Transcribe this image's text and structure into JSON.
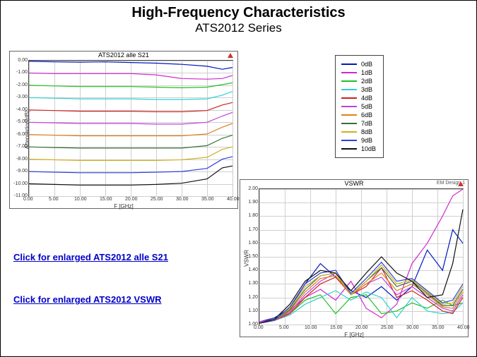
{
  "header": {
    "title": "High-Frequency Characteristics",
    "subtitle": "ATS2012  Series"
  },
  "links": {
    "s21": "Click for enlarged ATS2012 alle S21",
    "vswr": "Click for enlarged ATS2012 VSWR"
  },
  "legend": {
    "items": [
      {
        "label": "0dB",
        "color": "#0018c0"
      },
      {
        "label": "1dB",
        "color": "#d028d0"
      },
      {
        "label": "2dB",
        "color": "#20c020"
      },
      {
        "label": "3dB",
        "color": "#30d0d0"
      },
      {
        "label": "4dB",
        "color": "#d02020"
      },
      {
        "label": "5dB",
        "color": "#c040d8"
      },
      {
        "label": "6dB",
        "color": "#e08020"
      },
      {
        "label": "7dB",
        "color": "#3a6e3a"
      },
      {
        "label": "8dB",
        "color": "#d0b020"
      },
      {
        "label": "9dB",
        "color": "#3040d8"
      },
      {
        "label": "10dB",
        "color": "#101010"
      }
    ],
    "border_color": "#444444",
    "background": "#ffffff"
  },
  "chart_s21": {
    "type": "line",
    "title": "ATS2012 alle S21",
    "xlabel": "F [GHz]",
    "ylabel": "Attenuation[dB]",
    "xlim": [
      0,
      40
    ],
    "xtick_step": 5,
    "ylim": [
      -11,
      0
    ],
    "ytick_step": 1,
    "background": "#ffffff",
    "grid_color": "#cfcfcf",
    "axis_color": "#444444",
    "line_width": 1.2,
    "label_fontsize": 8,
    "tick_fontsize": 7,
    "series": [
      {
        "color": "#0018c0",
        "x": [
          0,
          5,
          10,
          15,
          20,
          25,
          30,
          35,
          38,
          40
        ],
        "y": [
          -0.05,
          -0.1,
          -0.12,
          -0.1,
          -0.15,
          -0.2,
          -0.3,
          -0.45,
          -0.7,
          -0.55
        ]
      },
      {
        "color": "#d028d0",
        "x": [
          0,
          5,
          10,
          15,
          20,
          25,
          30,
          35,
          38,
          40
        ],
        "y": [
          -1.0,
          -1.05,
          -1.05,
          -1.05,
          -1.05,
          -1.15,
          -1.45,
          -1.5,
          -1.45,
          -1.2
        ]
      },
      {
        "color": "#20c020",
        "x": [
          0,
          5,
          10,
          15,
          20,
          25,
          30,
          35,
          38,
          40
        ],
        "y": [
          -2.0,
          -2.05,
          -2.1,
          -2.1,
          -2.1,
          -2.15,
          -2.2,
          -2.15,
          -1.95,
          -1.8
        ]
      },
      {
        "color": "#30d0d0",
        "x": [
          0,
          5,
          10,
          15,
          20,
          25,
          30,
          35,
          38,
          40
        ],
        "y": [
          -3.0,
          -3.05,
          -3.1,
          -3.1,
          -3.1,
          -3.15,
          -3.15,
          -3.1,
          -2.8,
          -2.5
        ]
      },
      {
        "color": "#d02020",
        "x": [
          0,
          5,
          10,
          15,
          20,
          25,
          30,
          35,
          38,
          40
        ],
        "y": [
          -4.0,
          -4.05,
          -4.1,
          -4.1,
          -4.1,
          -4.15,
          -4.15,
          -4.05,
          -3.6,
          -3.4
        ]
      },
      {
        "color": "#c040d8",
        "x": [
          0,
          5,
          10,
          15,
          20,
          25,
          30,
          35,
          38,
          40
        ],
        "y": [
          -5.0,
          -5.05,
          -5.1,
          -5.1,
          -5.1,
          -5.15,
          -5.15,
          -5.0,
          -4.5,
          -4.2
        ]
      },
      {
        "color": "#e08020",
        "x": [
          0,
          5,
          10,
          15,
          20,
          25,
          30,
          35,
          38,
          40
        ],
        "y": [
          -6.0,
          -6.05,
          -6.1,
          -6.1,
          -6.1,
          -6.1,
          -6.1,
          -5.95,
          -5.4,
          -5.1
        ]
      },
      {
        "color": "#3a6e3a",
        "x": [
          0,
          5,
          10,
          15,
          20,
          25,
          30,
          35,
          38,
          40
        ],
        "y": [
          -7.0,
          -7.05,
          -7.1,
          -7.1,
          -7.1,
          -7.1,
          -7.1,
          -6.9,
          -6.3,
          -6.05
        ]
      },
      {
        "color": "#d0b020",
        "x": [
          0,
          5,
          10,
          15,
          20,
          25,
          30,
          35,
          38,
          40
        ],
        "y": [
          -8.0,
          -8.05,
          -8.1,
          -8.1,
          -8.1,
          -8.1,
          -8.05,
          -7.85,
          -7.2,
          -7.0
        ]
      },
      {
        "color": "#3040d8",
        "x": [
          0,
          5,
          10,
          15,
          20,
          25,
          30,
          35,
          38,
          40
        ],
        "y": [
          -9.0,
          -9.05,
          -9.1,
          -9.1,
          -9.1,
          -9.05,
          -9.0,
          -8.75,
          -8.0,
          -7.8
        ]
      },
      {
        "color": "#101010",
        "x": [
          0,
          5,
          10,
          15,
          20,
          25,
          30,
          35,
          38,
          40
        ],
        "y": [
          -10.0,
          -10.05,
          -10.1,
          -10.1,
          -10.1,
          -10.05,
          -9.95,
          -9.6,
          -8.7,
          -8.55
        ]
      }
    ]
  },
  "chart_vswr": {
    "type": "line",
    "title": "VSWR",
    "footnote": "EM Design 1",
    "xlabel": "F [GHz]",
    "ylabel": "VSWR",
    "xlim": [
      0,
      40
    ],
    "xtick_step": 5,
    "ylim": [
      1.0,
      2.0
    ],
    "ytick_step": 0.1,
    "background": "#ffffff",
    "grid_color": "#cfcfcf",
    "axis_color": "#444444",
    "line_width": 1.2,
    "label_fontsize": 8,
    "tick_fontsize": 7,
    "series": [
      {
        "color": "#0018c0",
        "x": [
          0,
          3,
          6,
          9,
          12,
          15,
          18,
          21,
          24,
          27,
          30,
          33,
          36,
          38,
          40
        ],
        "y": [
          1.02,
          1.05,
          1.12,
          1.3,
          1.45,
          1.35,
          1.25,
          1.2,
          1.28,
          1.18,
          1.28,
          1.55,
          1.4,
          1.7,
          1.6
        ]
      },
      {
        "color": "#d028d0",
        "x": [
          0,
          3,
          6,
          9,
          12,
          15,
          18,
          21,
          24,
          27,
          30,
          33,
          36,
          38,
          40
        ],
        "y": [
          1.02,
          1.04,
          1.1,
          1.2,
          1.26,
          1.18,
          1.32,
          1.12,
          1.05,
          1.15,
          1.45,
          1.6,
          1.8,
          1.95,
          2.0
        ]
      },
      {
        "color": "#20c020",
        "x": [
          0,
          3,
          6,
          9,
          12,
          15,
          18,
          21,
          24,
          27,
          30,
          33,
          36,
          38,
          40
        ],
        "y": [
          1.01,
          1.04,
          1.08,
          1.18,
          1.22,
          1.08,
          1.2,
          1.22,
          1.08,
          1.1,
          1.16,
          1.12,
          1.18,
          1.14,
          1.16
        ]
      },
      {
        "color": "#30d0d0",
        "x": [
          0,
          3,
          6,
          9,
          12,
          15,
          18,
          21,
          24,
          27,
          30,
          33,
          36,
          38,
          40
        ],
        "y": [
          1.01,
          1.03,
          1.07,
          1.15,
          1.2,
          1.25,
          1.18,
          1.24,
          1.2,
          1.05,
          1.2,
          1.1,
          1.08,
          1.09,
          1.16
        ]
      },
      {
        "color": "#d02020",
        "x": [
          0,
          3,
          6,
          9,
          12,
          15,
          18,
          21,
          24,
          27,
          30,
          33,
          36,
          38,
          40
        ],
        "y": [
          1.01,
          1.03,
          1.08,
          1.2,
          1.3,
          1.35,
          1.22,
          1.28,
          1.42,
          1.2,
          1.25,
          1.18,
          1.1,
          1.08,
          1.2
        ]
      },
      {
        "color": "#c040d8",
        "x": [
          0,
          3,
          6,
          9,
          12,
          15,
          18,
          21,
          24,
          27,
          30,
          33,
          36,
          38,
          40
        ],
        "y": [
          1.01,
          1.03,
          1.09,
          1.22,
          1.32,
          1.38,
          1.22,
          1.3,
          1.35,
          1.22,
          1.28,
          1.2,
          1.12,
          1.1,
          1.22
        ]
      },
      {
        "color": "#e08020",
        "x": [
          0,
          3,
          6,
          9,
          12,
          15,
          18,
          21,
          24,
          27,
          30,
          33,
          36,
          38,
          40
        ],
        "y": [
          1.01,
          1.03,
          1.1,
          1.24,
          1.34,
          1.36,
          1.22,
          1.3,
          1.38,
          1.25,
          1.3,
          1.22,
          1.13,
          1.12,
          1.24
        ]
      },
      {
        "color": "#3a6e3a",
        "x": [
          0,
          3,
          6,
          9,
          12,
          15,
          18,
          21,
          24,
          27,
          30,
          33,
          36,
          38,
          40
        ],
        "y": [
          1.01,
          1.03,
          1.11,
          1.26,
          1.36,
          1.38,
          1.22,
          1.32,
          1.42,
          1.28,
          1.32,
          1.23,
          1.14,
          1.14,
          1.26
        ]
      },
      {
        "color": "#d0b020",
        "x": [
          0,
          3,
          6,
          9,
          12,
          15,
          18,
          21,
          24,
          27,
          30,
          33,
          36,
          38,
          40
        ],
        "y": [
          1.01,
          1.03,
          1.12,
          1.28,
          1.36,
          1.38,
          1.22,
          1.32,
          1.44,
          1.3,
          1.33,
          1.24,
          1.15,
          1.16,
          1.28
        ]
      },
      {
        "color": "#3040d8",
        "x": [
          0,
          3,
          6,
          9,
          12,
          15,
          18,
          21,
          24,
          27,
          30,
          33,
          36,
          38,
          40
        ],
        "y": [
          1.01,
          1.03,
          1.13,
          1.3,
          1.38,
          1.4,
          1.23,
          1.34,
          1.46,
          1.32,
          1.34,
          1.25,
          1.16,
          1.18,
          1.3
        ]
      },
      {
        "color": "#101010",
        "x": [
          0,
          3,
          6,
          9,
          12,
          15,
          18,
          21,
          24,
          27,
          30,
          33,
          36,
          38,
          40
        ],
        "y": [
          1.01,
          1.04,
          1.15,
          1.32,
          1.4,
          1.38,
          1.25,
          1.38,
          1.5,
          1.38,
          1.32,
          1.2,
          1.22,
          1.45,
          1.85
        ]
      }
    ]
  }
}
